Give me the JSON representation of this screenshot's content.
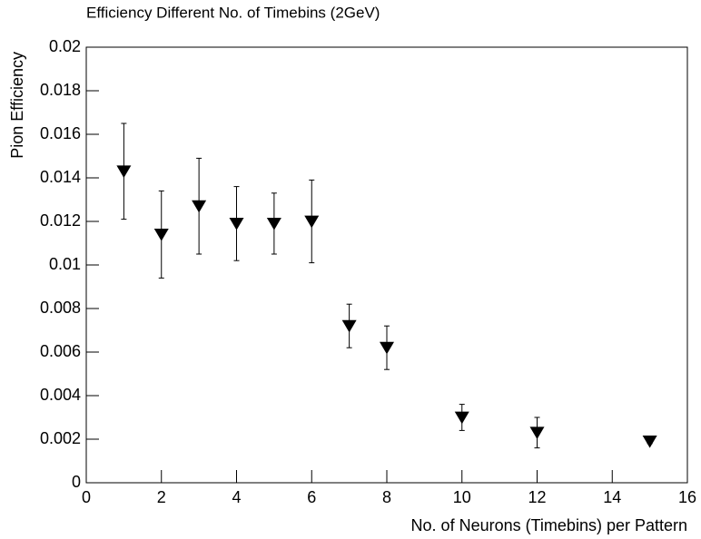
{
  "chart_data": {
    "type": "scatter",
    "title": "Efficiency Different No. of Timebins (2GeV)",
    "x_label": "No. of Neurons (Timebins) per Pattern",
    "y_label": "Pion Efficiency",
    "x": [
      1,
      2,
      3,
      4,
      5,
      6,
      7,
      8,
      10,
      12,
      15
    ],
    "values": [
      0.0143,
      0.0114,
      0.0127,
      0.0119,
      0.0119,
      0.012,
      0.0072,
      0.0062,
      0.003,
      0.0023,
      0.0019
    ],
    "errors": [
      0.0022,
      0.002,
      0.0022,
      0.0017,
      0.0014,
      0.0019,
      0.001,
      0.001,
      0.0006,
      0.0007,
      0.0001
    ],
    "color": "#000000",
    "xlim": [
      0,
      16
    ],
    "xticks": [
      0,
      2,
      4,
      6,
      8,
      10,
      12,
      14,
      16
    ],
    "ylim": [
      0,
      0.02
    ],
    "yticks": [
      0,
      0.002,
      0.004,
      0.006,
      0.008,
      0.01,
      0.012,
      0.014,
      0.016,
      0.018,
      0.02
    ]
  }
}
